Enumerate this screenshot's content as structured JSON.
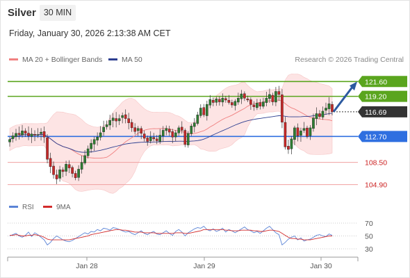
{
  "header": {
    "instrument": "Silver",
    "timeframe": "30 MIN",
    "datetime": "Friday, January 30, 2026 2:13:38 AM CET"
  },
  "legend": {
    "bollinger_label": "MA 20 + Bollinger Bands",
    "ma50_label": "MA 50",
    "rsi_label": "RSI",
    "rsi_ma_label": "9MA"
  },
  "credit": "Research © 2026 Trading Central",
  "colors": {
    "resistance": "#5aa51e",
    "pivot": "#2f6fe0",
    "support": "#cc2222",
    "current": "#333333",
    "candle_up": "#2e7d32",
    "candle_down": "#c62828",
    "bollinger_fill": "#fde4e4",
    "ma20": "#f08080",
    "ma50": "#2c3e90",
    "rsi": "#5b84d6",
    "rsi_ma": "#d22b2b"
  },
  "chart_data": {
    "type": "candlestick",
    "instrument": "Silver",
    "timeframe": "30 MIN",
    "ylim": [
      103.5,
      124.0
    ],
    "x_ticks": [
      "Jan 28",
      "Jan 29",
      "Jan 30"
    ],
    "levels": [
      {
        "value": 121.6,
        "label": "121.60",
        "kind": "resistance"
      },
      {
        "value": 119.2,
        "label": "119.20",
        "kind": "resistance"
      },
      {
        "value": 116.69,
        "label": "116.69",
        "kind": "current"
      },
      {
        "value": 112.7,
        "label": "112.70",
        "kind": "pivot"
      },
      {
        "value": 108.5,
        "label": "108.50",
        "kind": "support"
      },
      {
        "value": 104.9,
        "label": "104.90",
        "kind": "support"
      }
    ],
    "projection": {
      "from": 116.69,
      "to": 121.6,
      "direction": "up"
    },
    "close_series": [
      112.2,
      112.8,
      113.2,
      113.0,
      113.6,
      113.2,
      112.8,
      113.1,
      112.9,
      113.0,
      113.4,
      112.6,
      109.0,
      107.8,
      106.5,
      105.8,
      107.3,
      107.0,
      108.2,
      107.6,
      106.7,
      106.0,
      107.4,
      108.5,
      109.6,
      110.7,
      111.6,
      112.2,
      112.6,
      113.3,
      114.2,
      114.6,
      115.3,
      115.7,
      115.2,
      115.6,
      116.1,
      115.6,
      114.9,
      114.1,
      113.5,
      114.0,
      113.2,
      112.4,
      111.9,
      112.6,
      112.3,
      112.0,
      112.9,
      113.7,
      114.0,
      113.4,
      112.6,
      113.3,
      114.1,
      113.7,
      111.4,
      113.2,
      114.4,
      114.9,
      116.2,
      117.3,
      116.2,
      117.9,
      118.7,
      118.2,
      118.8,
      118.3,
      118.9,
      118.6,
      118.2,
      117.8,
      118.4,
      118.9,
      119.6,
      118.9,
      118.6,
      117.9,
      117.5,
      118.1,
      117.6,
      118.3,
      118.9,
      119.5,
      118.3,
      120.0,
      119.5,
      115.0,
      111.0,
      110.6,
      112.3,
      114.1,
      112.8,
      113.6,
      114.0,
      112.7,
      114.1,
      115.7,
      116.4,
      115.9,
      116.8,
      117.3,
      118.0,
      116.69
    ],
    "rsi": {
      "ticks": [
        70,
        50,
        30
      ],
      "rsi_values": [
        50,
        52,
        54,
        50,
        48,
        51,
        56,
        49,
        55,
        52,
        48,
        44,
        36,
        40,
        46,
        50,
        47,
        44,
        42,
        41,
        43,
        46,
        49,
        52,
        55,
        53,
        57,
        56,
        60,
        58,
        62,
        61,
        59,
        63,
        62,
        60,
        58,
        56,
        57,
        54,
        52,
        55,
        58,
        54,
        52,
        55,
        57,
        53,
        52,
        55,
        58,
        54,
        51,
        57,
        60,
        56,
        50,
        55,
        58,
        61,
        63,
        62,
        65,
        60,
        58,
        61,
        57,
        59,
        62,
        56,
        60,
        58,
        55,
        58,
        61,
        64,
        60,
        58,
        55,
        57,
        54,
        58,
        62,
        65,
        60,
        55,
        52,
        36,
        40,
        45,
        48,
        50,
        44,
        47,
        42,
        44,
        45,
        48,
        51,
        52,
        50,
        49,
        53,
        51
      ],
      "ma_values": [
        51,
        51,
        52,
        51,
        50,
        50,
        51,
        51,
        52,
        51,
        50,
        48,
        45,
        44,
        44,
        44,
        44,
        44,
        44,
        44,
        45,
        46,
        47,
        48,
        49,
        50,
        52,
        53,
        54,
        55,
        56,
        57,
        58,
        59,
        60,
        60,
        59,
        59,
        58,
        57,
        56,
        56,
        56,
        55,
        55,
        55,
        55,
        54,
        54,
        54,
        54,
        54,
        54,
        55,
        55,
        55,
        54,
        54,
        55,
        56,
        57,
        58,
        60,
        60,
        60,
        60,
        60,
        60,
        60,
        59,
        59,
        58,
        58,
        58,
        59,
        59,
        59,
        59,
        58,
        58,
        57,
        57,
        58,
        59,
        59,
        58,
        57,
        54,
        51,
        48,
        46,
        46,
        45,
        45,
        44,
        44,
        44,
        45,
        46,
        47,
        48,
        49,
        50,
        50
      ]
    }
  }
}
